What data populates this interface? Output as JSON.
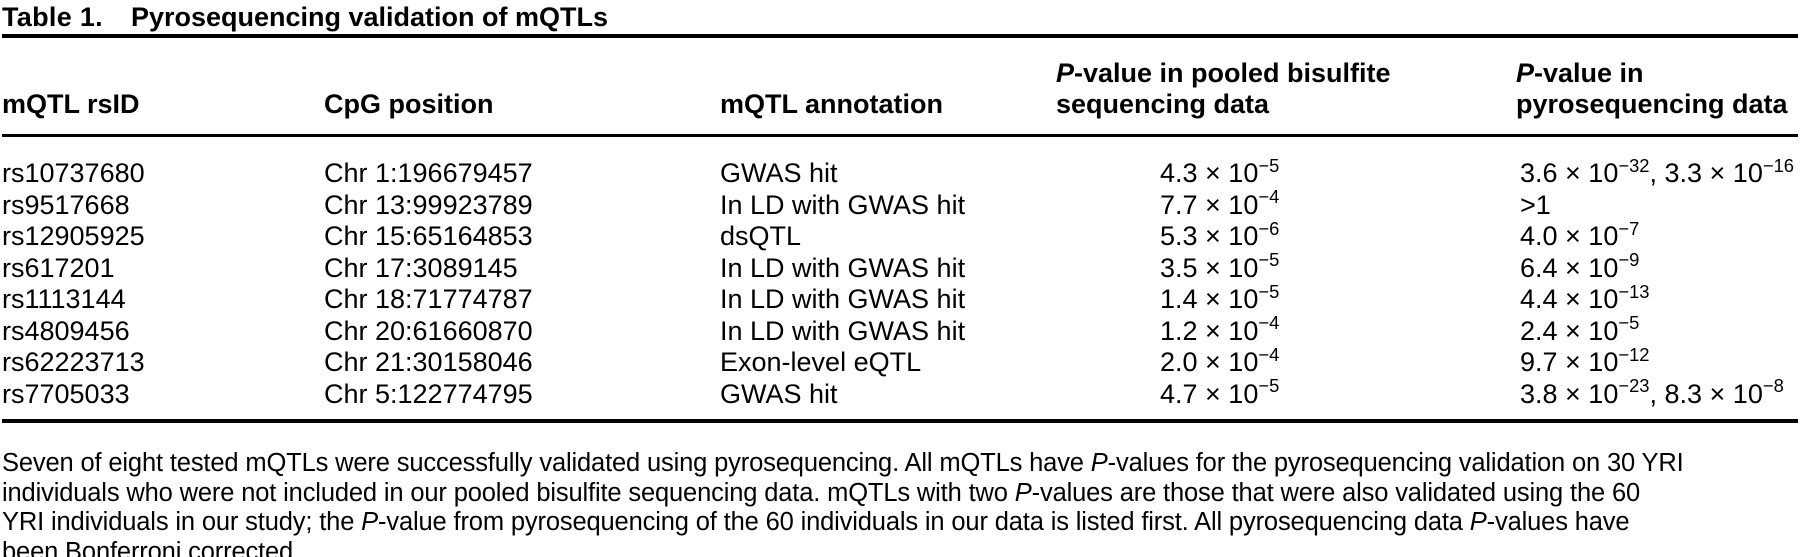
{
  "page": {
    "background_color": "#ffffff",
    "text_color": "#000000",
    "rule_color": "#000000"
  },
  "title": {
    "label": "Table 1.",
    "caption": "Pyrosequencing validation of mQTLs"
  },
  "table": {
    "columns": [
      {
        "id": "rsid",
        "header_lines": [
          "mQTL rsID"
        ]
      },
      {
        "id": "cpg",
        "header_lines": [
          "CpG position"
        ]
      },
      {
        "id": "annotation",
        "header_lines": [
          "mQTL annotation"
        ]
      },
      {
        "id": "pooled",
        "header_lines": [
          "P-value in pooled bisulfite",
          "sequencing data"
        ]
      },
      {
        "id": "pyro",
        "header_lines": [
          "P-value in",
          "pyrosequencing data"
        ]
      }
    ],
    "rows": [
      {
        "rsid": "rs10737680",
        "cpg": "Chr 1:196679457",
        "annotation": "GWAS hit",
        "pooled": "4.3 × 10^{-5}",
        "pyro": "3.6 × 10^{-32}, 3.3 × 10^{-16}"
      },
      {
        "rsid": "rs9517668",
        "cpg": "Chr 13:99923789",
        "annotation": "In LD with GWAS hit",
        "pooled": "7.7 × 10^{-4}",
        "pyro": ">1"
      },
      {
        "rsid": "rs12905925",
        "cpg": "Chr 15:65164853",
        "annotation": "dsQTL",
        "pooled": "5.3 × 10^{-6}",
        "pyro": "4.0 × 10^{-7}"
      },
      {
        "rsid": "rs617201",
        "cpg": "Chr 17:3089145",
        "annotation": "In LD with GWAS hit",
        "pooled": "3.5 × 10^{-5}",
        "pyro": "6.4 × 10^{-9}"
      },
      {
        "rsid": "rs1113144",
        "cpg": "Chr 18:71774787",
        "annotation": "In LD with GWAS hit",
        "pooled": "1.4 × 10^{-5}",
        "pyro": "4.4 × 10^{-13}"
      },
      {
        "rsid": "rs4809456",
        "cpg": "Chr 20:61660870",
        "annotation": "In LD with GWAS hit",
        "pooled": "1.2 × 10^{-4}",
        "pyro": "2.4 × 10^{-5}"
      },
      {
        "rsid": "rs62223713",
        "cpg": "Chr 21:30158046",
        "annotation": "Exon-level eQTL",
        "pooled": "2.0 × 10^{-4}",
        "pyro": "9.7 × 10^{-12}"
      },
      {
        "rsid": "rs7705033",
        "cpg": "Chr 5:122774795",
        "annotation": "GWAS hit",
        "pooled": "4.7 × 10^{-5}",
        "pyro": "3.8 × 10^{-23}, 8.3 × 10^{-8}"
      }
    ]
  },
  "footnote": {
    "lines": [
      "Seven of eight tested mQTLs were successfully validated using pyrosequencing. All mQTLs have P-values for the pyrosequencing validation on 30 YRI",
      "individuals who were not included in our pooled bisulfite sequencing data. mQTLs with two P-values are those that were also validated using the 60",
      "YRI individuals in our study; the P-value from pyrosequencing of the 60 individuals in our data is listed first. All pyrosequencing data P-values have",
      "been Bonferroni corrected."
    ]
  }
}
